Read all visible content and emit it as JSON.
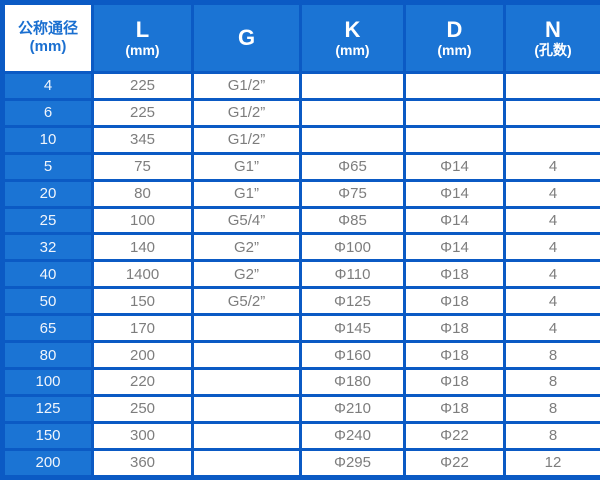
{
  "colors": {
    "fill_blue": "#1b74d4",
    "border_blue": "#0b5ac4",
    "data_text_gray": "#7d7d7d",
    "header_text_white": "#ffffff",
    "first_header_text_blue": "#1a6fd0"
  },
  "table": {
    "columns": [
      {
        "label": "公称通径",
        "sub": "(mm)"
      },
      {
        "label": "L",
        "sub": "(mm)"
      },
      {
        "label": "G",
        "sub": ""
      },
      {
        "label": "K",
        "sub": "(mm)"
      },
      {
        "label": "D",
        "sub": "(mm)"
      },
      {
        "label": "N",
        "sub": "(孔数)"
      }
    ],
    "rows": [
      [
        "4",
        "225",
        "G1/2”",
        "",
        "",
        ""
      ],
      [
        "6",
        "225",
        "G1/2”",
        "",
        "",
        ""
      ],
      [
        "10",
        "345",
        "G1/2”",
        "",
        "",
        ""
      ],
      [
        "5",
        "75",
        "G1”",
        "Φ65",
        "Φ14",
        "4"
      ],
      [
        "20",
        "80",
        "G1”",
        "Φ75",
        "Φ14",
        "4"
      ],
      [
        "25",
        "100",
        "G5/4”",
        "Φ85",
        "Φ14",
        "4"
      ],
      [
        "32",
        "140",
        "G2”",
        "Φ100",
        "Φ14",
        "4"
      ],
      [
        "40",
        "1400",
        "G2”",
        "Φ110",
        "Φ18",
        "4"
      ],
      [
        "50",
        "150",
        "G5/2”",
        "Φ125",
        "Φ18",
        "4"
      ],
      [
        "65",
        "170",
        "",
        "Φ145",
        "Φ18",
        "4"
      ],
      [
        "80",
        "200",
        "",
        "Φ160",
        "Φ18",
        "8"
      ],
      [
        "100",
        "220",
        "",
        "Φ180",
        "Φ18",
        "8"
      ],
      [
        "125",
        "250",
        "",
        "Φ210",
        "Φ18",
        "8"
      ],
      [
        "150",
        "300",
        "",
        "Φ240",
        "Φ22",
        "8"
      ],
      [
        "200",
        "360",
        "",
        "Φ295",
        "Φ22",
        "12"
      ]
    ]
  }
}
